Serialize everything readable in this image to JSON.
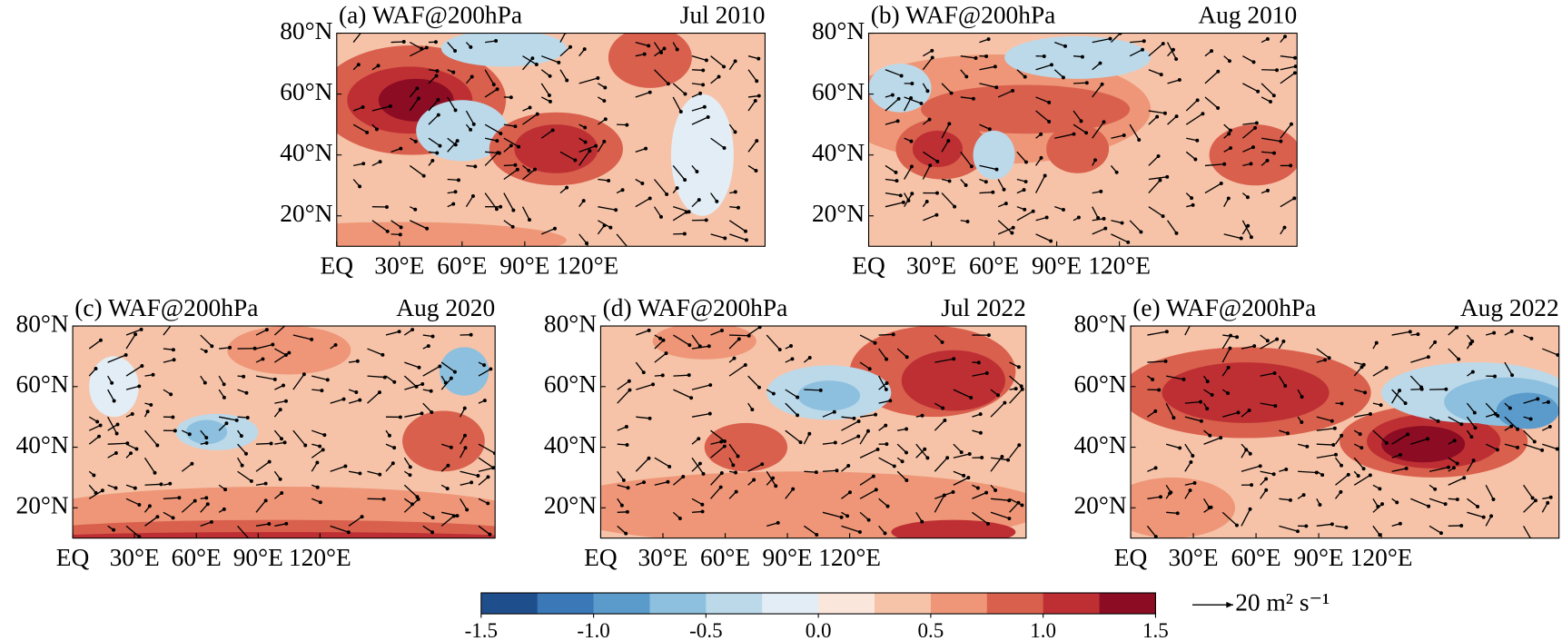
{
  "chart_data": [
    {
      "type": "map",
      "title": "(a) WAF@200hPa",
      "date": "Jul 2010",
      "xlim": [
        0,
        205
      ],
      "ylim": [
        10,
        80
      ],
      "xticks": [
        {
          "value": 0,
          "label": "EQ"
        },
        {
          "value": 30,
          "label": "30°E"
        },
        {
          "value": 60,
          "label": "60°E"
        },
        {
          "value": 90,
          "label": "90°E"
        },
        {
          "value": 120,
          "label": "120°E"
        }
      ],
      "yticks": [
        {
          "value": 20,
          "label": "20°N"
        },
        {
          "value": 40,
          "label": "40°N"
        },
        {
          "value": 60,
          "label": "60°N"
        },
        {
          "value": 80,
          "label": "80°N"
        }
      ]
    },
    {
      "type": "map",
      "title": "(b) WAF@200hPa",
      "date": "Aug 2010",
      "xlim": [
        0,
        205
      ],
      "ylim": [
        10,
        80
      ],
      "xticks": [
        {
          "value": 0,
          "label": "EQ"
        },
        {
          "value": 30,
          "label": "30°E"
        },
        {
          "value": 60,
          "label": "60°E"
        },
        {
          "value": 90,
          "label": "90°E"
        },
        {
          "value": 120,
          "label": "120°E"
        }
      ],
      "yticks": [
        {
          "value": 20,
          "label": "20°N"
        },
        {
          "value": 40,
          "label": "40°N"
        },
        {
          "value": 60,
          "label": "60°N"
        },
        {
          "value": 80,
          "label": "80°N"
        }
      ]
    },
    {
      "type": "map",
      "title": "(c) WAF@200hPa",
      "date": "Aug 2020",
      "xlim": [
        0,
        205
      ],
      "ylim": [
        10,
        80
      ],
      "xticks": [
        {
          "value": 0,
          "label": "EQ"
        },
        {
          "value": 30,
          "label": "30°E"
        },
        {
          "value": 60,
          "label": "60°E"
        },
        {
          "value": 90,
          "label": "90°E"
        },
        {
          "value": 120,
          "label": "120°E"
        }
      ],
      "yticks": [
        {
          "value": 20,
          "label": "20°N"
        },
        {
          "value": 40,
          "label": "40°N"
        },
        {
          "value": 60,
          "label": "60°N"
        },
        {
          "value": 80,
          "label": "80°N"
        }
      ]
    },
    {
      "type": "map",
      "title": "(d) WAF@200hPa",
      "date": "Jul 2022",
      "xlim": [
        0,
        205
      ],
      "ylim": [
        10,
        80
      ],
      "xticks": [
        {
          "value": 0,
          "label": "EQ"
        },
        {
          "value": 30,
          "label": "30°E"
        },
        {
          "value": 60,
          "label": "60°E"
        },
        {
          "value": 90,
          "label": "90°E"
        },
        {
          "value": 120,
          "label": "120°E"
        }
      ],
      "yticks": [
        {
          "value": 20,
          "label": "20°N"
        },
        {
          "value": 40,
          "label": "40°N"
        },
        {
          "value": 60,
          "label": "60°N"
        },
        {
          "value": 80,
          "label": "80°N"
        }
      ]
    },
    {
      "type": "map",
      "title": "(e) WAF@200hPa",
      "date": "Aug 2022",
      "xlim": [
        0,
        205
      ],
      "ylim": [
        10,
        80
      ],
      "xticks": [
        {
          "value": 0,
          "label": "EQ"
        },
        {
          "value": 30,
          "label": "30°E"
        },
        {
          "value": 60,
          "label": "60°E"
        },
        {
          "value": 90,
          "label": "90°E"
        },
        {
          "value": 120,
          "label": "120°E"
        }
      ],
      "yticks": [
        {
          "value": 20,
          "label": "20°N"
        },
        {
          "value": 40,
          "label": "40°N"
        },
        {
          "value": 60,
          "label": "60°N"
        },
        {
          "value": 80,
          "label": "80°N"
        }
      ]
    },
    {
      "type": "colorbar",
      "xlim": [
        -1.5,
        1.5
      ],
      "colors": [
        "#1f4e8c",
        "#3a78b8",
        "#5a9bcc",
        "#8dc0de",
        "#bcd9ea",
        "#e3edf5",
        "#fbe6dc",
        "#f6c3a8",
        "#ee9677",
        "#d9604d",
        "#bd2f33",
        "#8b0c23"
      ],
      "xticks": [
        -1.5,
        {
          "value": -1,
          "label": "-1.0"
        },
        -0.5,
        {
          "value": 0,
          "label": "0.0"
        },
        0.5,
        {
          "value": 1,
          "label": "1.0"
        },
        1.5
      ],
      "vector_key": {
        "value": 20,
        "label": "20 m² s⁻¹"
      }
    }
  ]
}
